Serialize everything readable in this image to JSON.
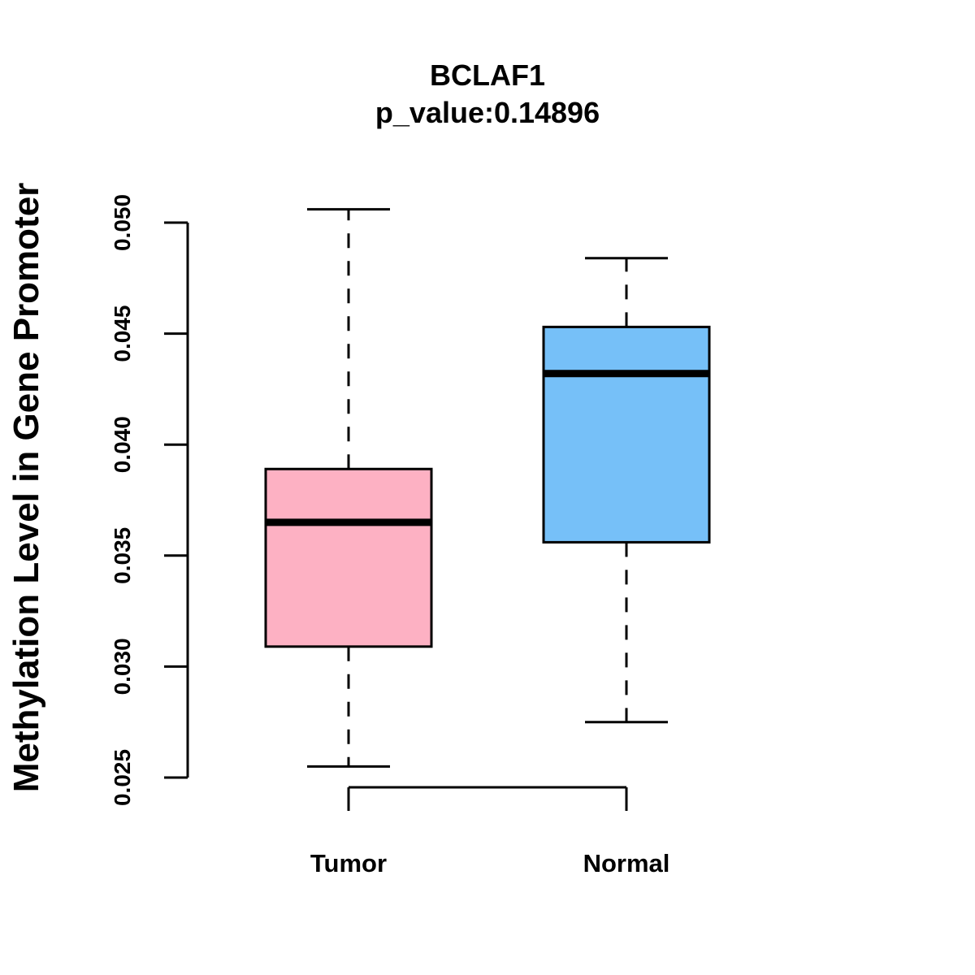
{
  "chart_data": {
    "type": "box",
    "title": "BCLAF1",
    "subtitle": "p_value:0.14896",
    "ylabel": "Methylation Level in Gene Promoter",
    "xlabel": "",
    "ylim": [
      0.025,
      0.05
    ],
    "yticks": [
      "0.025",
      "0.030",
      "0.035",
      "0.040",
      "0.045",
      "0.050"
    ],
    "categories": [
      "Tumor",
      "Normal"
    ],
    "boxes": [
      {
        "name": "Tumor",
        "min": 0.0255,
        "q1": 0.0309,
        "median": 0.0365,
        "q3": 0.0389,
        "max": 0.0506,
        "color": "#FDB1C3"
      },
      {
        "name": "Normal",
        "min": 0.0275,
        "q1": 0.0356,
        "median": 0.0432,
        "q3": 0.0453,
        "max": 0.0484,
        "color": "#76C0F8"
      }
    ]
  }
}
